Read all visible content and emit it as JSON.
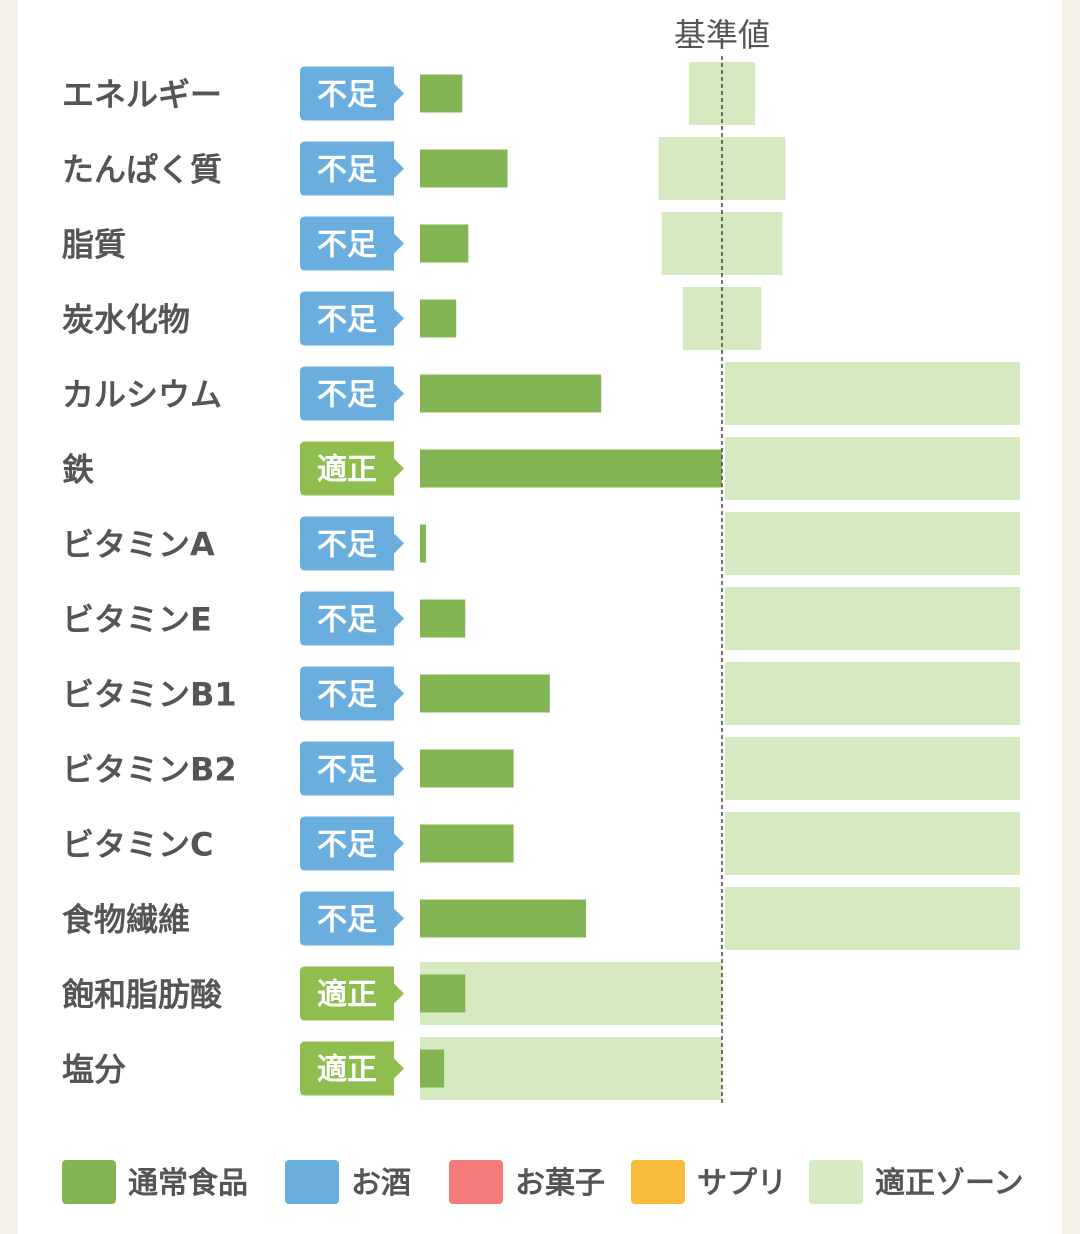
{
  "chart_data": {
    "type": "bar",
    "reference_label": "基準値",
    "reference_value": 100,
    "x_range": [
      0,
      200
    ],
    "colors": {
      "通常食品": "#84b554",
      "お酒": "#6aaee0",
      "お菓子": "#f47a7a",
      "サプリ": "#f8bb3a",
      "適正ゾーン": "#d6eac1",
      "status_shortage": "#6aaee0",
      "status_ok": "#8fbe4e"
    },
    "items": [
      {
        "name": "エネルギー",
        "status": "不足",
        "status_type": "shortage",
        "value": 14,
        "zone": [
          89,
          111
        ]
      },
      {
        "name": "たんぱく質",
        "status": "不足",
        "status_type": "shortage",
        "value": 29,
        "zone": [
          79,
          121
        ]
      },
      {
        "name": "脂質",
        "status": "不足",
        "status_type": "shortage",
        "value": 16,
        "zone": [
          80,
          120
        ]
      },
      {
        "name": "炭水化物",
        "status": "不足",
        "status_type": "shortage",
        "value": 12,
        "zone": [
          87,
          113
        ]
      },
      {
        "name": "カルシウム",
        "status": "不足",
        "status_type": "shortage",
        "value": 60,
        "zone": [
          101,
          200
        ]
      },
      {
        "name": "鉄",
        "status": "適正",
        "status_type": "ok",
        "value": 100,
        "zone": [
          101,
          200
        ]
      },
      {
        "name": "ビタミンA",
        "status": "不足",
        "status_type": "shortage",
        "value": 2,
        "zone": [
          101,
          200
        ]
      },
      {
        "name": "ビタミンE",
        "status": "不足",
        "status_type": "shortage",
        "value": 15,
        "zone": [
          101,
          200
        ]
      },
      {
        "name": "ビタミンB1",
        "status": "不足",
        "status_type": "shortage",
        "value": 43,
        "zone": [
          101,
          200
        ]
      },
      {
        "name": "ビタミンB2",
        "status": "不足",
        "status_type": "shortage",
        "value": 31,
        "zone": [
          101,
          200
        ]
      },
      {
        "name": "ビタミンC",
        "status": "不足",
        "status_type": "shortage",
        "value": 31,
        "zone": [
          101,
          200
        ]
      },
      {
        "name": "食物繊維",
        "status": "不足",
        "status_type": "shortage",
        "value": 55,
        "zone": [
          101,
          200
        ]
      },
      {
        "name": "飽和脂肪酸",
        "status": "適正",
        "status_type": "ok",
        "value": 15,
        "zone": [
          0,
          100
        ]
      },
      {
        "name": "塩分",
        "status": "適正",
        "status_type": "ok",
        "value": 8,
        "zone": [
          0,
          100
        ]
      }
    ],
    "legend": [
      {
        "label": "通常食品",
        "color": "#84b554"
      },
      {
        "label": "お酒",
        "color": "#6aaee0"
      },
      {
        "label": "お菓子",
        "color": "#f47a7a"
      },
      {
        "label": "サプリ",
        "color": "#f8bb3a"
      },
      {
        "label": "適正ゾーン",
        "color": "#d6eac1"
      }
    ]
  }
}
